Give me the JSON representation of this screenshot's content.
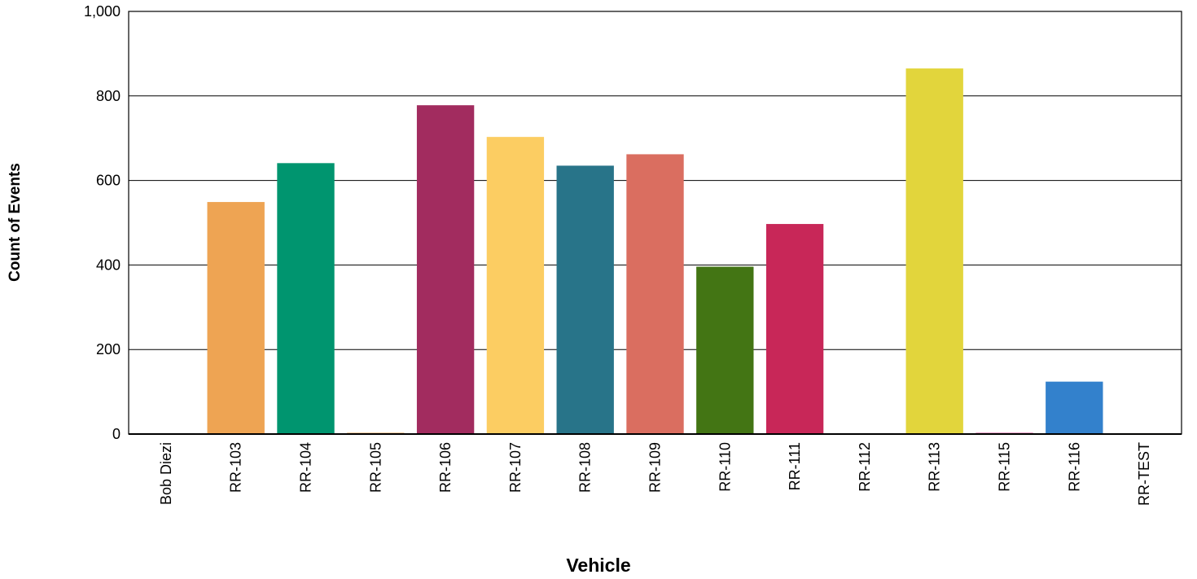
{
  "chart_data": {
    "type": "bar",
    "title": "",
    "xlabel": "Vehicle",
    "ylabel": "Count of Events",
    "ylim": [
      0,
      1000
    ],
    "yticks": [
      0,
      200,
      400,
      600,
      800,
      1000
    ],
    "ytick_labels": [
      "0",
      "200",
      "400",
      "600",
      "800",
      "1,000"
    ],
    "grid": true,
    "legend": "none",
    "categories": [
      "Bob Diezi",
      "RR-103",
      "RR-104",
      "RR-105",
      "RR-106",
      "RR-107",
      "RR-108",
      "RR-109",
      "RR-110",
      "RR-111",
      "RR-112",
      "RR-113",
      "RR-115",
      "RR-116",
      "RR-TEST"
    ],
    "values": [
      2,
      549,
      641,
      3,
      778,
      703,
      635,
      662,
      396,
      497,
      2,
      865,
      4,
      124,
      2
    ],
    "colors": [
      "#2e6b8a",
      "#eea453",
      "#00956f",
      "#eea453",
      "#a22c5f",
      "#fccd62",
      "#287489",
      "#da6e60",
      "#437514",
      "#c82758",
      "#5a2d82",
      "#e2d53c",
      "#e9a3c9",
      "#3381cc",
      "#c9a227"
    ]
  }
}
